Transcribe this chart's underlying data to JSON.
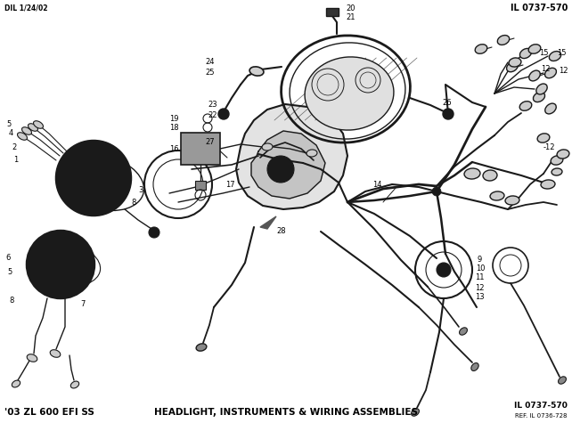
{
  "title": "HEADLIGHT, INSTRUMENTS & WIRING ASSEMBLIES",
  "model": "'03 ZL 600 EFI SS",
  "il_number_top": "IL 0737-570",
  "il_number_bottom": "IL 0737-570",
  "ref_number": "REF. IL 0736-728",
  "date": "DIL 1/24/02",
  "bg_color": "#ffffff",
  "lc": "#1a1a1a",
  "tc": "#000000"
}
